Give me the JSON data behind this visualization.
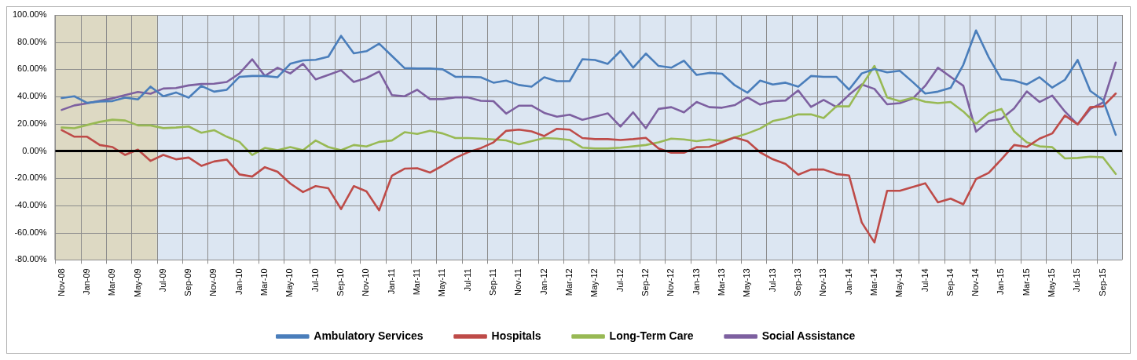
{
  "chart_data": {
    "type": "line",
    "categories": [
      "Nov-08",
      null,
      "Jan-09",
      null,
      "Mar-09",
      null,
      "May-09",
      null,
      "Jul-09",
      null,
      "Sep-09",
      null,
      "Nov-09",
      null,
      "Jan-10",
      null,
      "Mar-10",
      null,
      "May-10",
      null,
      "Jul-10",
      null,
      "Sep-10",
      null,
      "Nov-10",
      null,
      "Jan-11",
      null,
      "Mar-11",
      null,
      "May-11",
      null,
      "Jul-11",
      null,
      "Sep-11",
      null,
      "Nov-11",
      null,
      "Jan-12",
      null,
      "Mar-12",
      null,
      "May-12",
      null,
      "Jul-12",
      null,
      "Sep-12",
      null,
      "Nov-12",
      null,
      "Jan-13",
      null,
      "Mar-13",
      null,
      "May-13",
      null,
      "Jul-13",
      null,
      "Sep-13",
      null,
      "Nov-13",
      null,
      "Jan-14",
      null,
      "Mar-14",
      null,
      "May-14",
      null,
      "Jul-14",
      null,
      "Sep-14",
      null,
      "Nov-14",
      null,
      "Jan-15",
      null,
      "Mar-15",
      null,
      "May-15",
      null,
      "Jul-15",
      null,
      "Sep-15",
      null
    ],
    "series": [
      {
        "name": "Ambulatory Services",
        "color": "#4a7ebb",
        "values": [
          38.9,
          40.2,
          35.4,
          36.4,
          36.7,
          39.2,
          37.9,
          47.3,
          40.2,
          43,
          39.2,
          47.8,
          43.6,
          45,
          54.5,
          55.1,
          55.1,
          54.2,
          64.1,
          66.6,
          67,
          69.3,
          84.6,
          71.8,
          73.3,
          78.9,
          69.9,
          60.9,
          60.6,
          60.6,
          60,
          54.5,
          54.5,
          54.2,
          50.2,
          51.7,
          48.5,
          47.3,
          54.2,
          51.3,
          51.3,
          67.4,
          66.9,
          64,
          73.5,
          61.2,
          71.6,
          62.5,
          61.2,
          66.3,
          55.9,
          57.4,
          56.8,
          48.3,
          42.8,
          51.7,
          48.9,
          50.2,
          47.3,
          55.1,
          54.5,
          54.5,
          45.1,
          57,
          60.2,
          57.8,
          58.9,
          50.8,
          42.2,
          43.6,
          46.4,
          63.4,
          88.6,
          68.8,
          52.7,
          51.7,
          48.9,
          54.2,
          46.6,
          52.3,
          66.9,
          44.1,
          37.5,
          11.9
        ]
      },
      {
        "name": "Hospitals",
        "color": "#be4b48",
        "values": [
          15.3,
          10.5,
          10.5,
          4.4,
          2.9,
          -2.9,
          1,
          -7.3,
          -2.9,
          -6.1,
          -4.8,
          -10.9,
          -7.7,
          -6.3,
          -17.2,
          -18.8,
          -11.9,
          -15.3,
          -23.9,
          -30.2,
          -25.8,
          -27.4,
          -42.7,
          -25.8,
          -29.7,
          -43.6,
          -18.2,
          -13,
          -12.7,
          -15.9,
          -10.8,
          -5.1,
          -0.9,
          2.1,
          6.3,
          14.8,
          15.7,
          14.4,
          11,
          16.3,
          15.7,
          9.5,
          8.7,
          8.7,
          8.1,
          8.7,
          9.7,
          1.9,
          -1.3,
          -1.3,
          2.8,
          3,
          6.3,
          10,
          7.2,
          -1,
          -6.1,
          -9.5,
          -17.4,
          -13.6,
          -13.6,
          -16.9,
          -18,
          -52.5,
          -67.2,
          -29.2,
          -29.2,
          -26.5,
          -23.7,
          -37.7,
          -35,
          -39.2,
          -20.6,
          -16.1,
          -6.1,
          4.4,
          3,
          9.1,
          12.9,
          26.1,
          19.5,
          32.2,
          32.8,
          42.2
        ]
      },
      {
        "name": "Long-Term Care",
        "color": "#98b954",
        "values": [
          17.2,
          16.7,
          19.1,
          21.4,
          23,
          22.4,
          18.8,
          18.8,
          16.8,
          17.2,
          18,
          13.4,
          15.3,
          10.5,
          6.7,
          -2.9,
          2.3,
          0.6,
          2.9,
          0.6,
          7.7,
          2.9,
          0.6,
          4.4,
          3.3,
          6.7,
          7.7,
          13.8,
          12.5,
          14.8,
          12.9,
          9.5,
          9.5,
          9.1,
          8.5,
          7.8,
          4.9,
          7.2,
          9.5,
          9.1,
          8.1,
          2.5,
          1.9,
          1.9,
          2.5,
          3.4,
          4.4,
          6.3,
          9.1,
          8.5,
          7.2,
          8.5,
          7.2,
          10,
          12.9,
          16.5,
          22,
          23.9,
          26.9,
          26.9,
          24.2,
          32.8,
          32.8,
          47.9,
          62.5,
          39.4,
          36.6,
          39,
          36.2,
          35.2,
          36,
          29,
          19.9,
          27.8,
          30.9,
          14.4,
          6.3,
          3.4,
          2.8,
          -5.5,
          -5.1,
          -4.2,
          -4.7,
          -16.9
        ]
      },
      {
        "name": "Social Assistance",
        "color": "#7d60a0",
        "values": [
          30.2,
          33.5,
          35,
          36.9,
          38.7,
          41.1,
          43.4,
          42.1,
          45.9,
          46.3,
          48.2,
          49.2,
          49.4,
          50.7,
          57,
          67.4,
          55.1,
          61.2,
          57,
          64.1,
          52.6,
          55.9,
          59.3,
          50.7,
          53.6,
          58.4,
          41.1,
          40.2,
          45,
          38.1,
          38.1,
          39.4,
          39.4,
          36.9,
          36.6,
          27.5,
          33.3,
          33.3,
          28,
          25.2,
          26.7,
          22.9,
          25.2,
          27.7,
          18,
          28.4,
          16.7,
          30.9,
          32.2,
          28.4,
          36,
          32.2,
          31.8,
          33.7,
          39.4,
          34.1,
          36.6,
          37.1,
          44.5,
          32.4,
          37.5,
          32.4,
          41.3,
          48.9,
          45.6,
          34.3,
          35.2,
          38.4,
          47.9,
          61.2,
          54.5,
          47.9,
          14.2,
          22,
          23.7,
          31.3,
          43.8,
          36,
          40.7,
          29,
          19.5,
          30.9,
          35.6,
          65
        ]
      }
    ],
    "ylim": [
      -80,
      100
    ],
    "yticks": [
      {
        "value": -80,
        "label": "-80.00%"
      },
      {
        "value": -60,
        "label": "-60.00%"
      },
      {
        "value": -40,
        "label": "-40.00%"
      },
      {
        "value": -20,
        "label": "-20.00%"
      },
      {
        "value": 0,
        "label": "0.00%"
      },
      {
        "value": 20,
        "label": "20.00%"
      },
      {
        "value": 40,
        "label": "40.00%"
      },
      {
        "value": 60,
        "label": "60.00%"
      },
      {
        "value": 80,
        "label": "80.00%"
      },
      {
        "value": 100,
        "label": "100.00%"
      }
    ],
    "ref_lines": [
      {
        "axis": "y",
        "value": 0,
        "color": "#000000"
      }
    ],
    "bands": [
      {
        "axis": "x",
        "from": "Nov-08",
        "to": "Jul-09",
        "color": "#ddd9c3"
      }
    ],
    "grid": true,
    "legend": "bottom",
    "marker": "none",
    "line_style": "solid"
  }
}
